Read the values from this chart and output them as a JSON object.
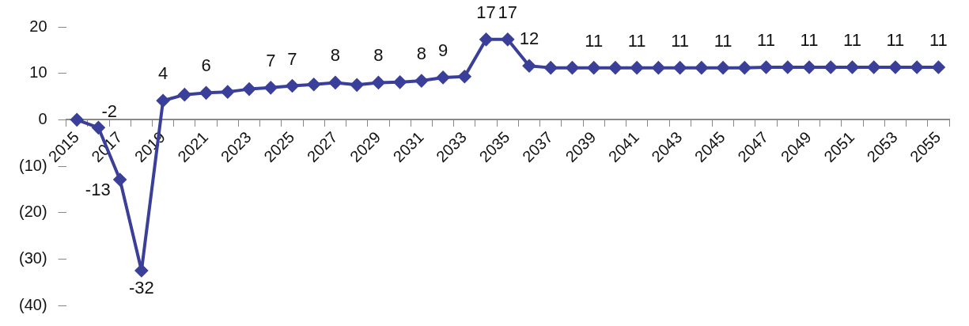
{
  "chart_data": {
    "type": "line",
    "categories": [
      "2015",
      null,
      "2017",
      null,
      "2019",
      null,
      "2021",
      null,
      "2023",
      null,
      "2025",
      null,
      "2027",
      null,
      "2029",
      null,
      "2031",
      null,
      "2033",
      null,
      "2035",
      null,
      "2037",
      null,
      "2039",
      null,
      "2041",
      null,
      "2043",
      null,
      "2045",
      null,
      "2047",
      null,
      "2049",
      null,
      "2051",
      null,
      "2053",
      null,
      "2055"
    ],
    "series": [
      {
        "color": "#3a3f9a",
        "values": [
          0,
          -1.7,
          -12.9,
          -32.5,
          4.1,
          5.4,
          5.8,
          6.0,
          6.6,
          6.9,
          7.3,
          7.6,
          8.0,
          7.5,
          8.0,
          8.1,
          8.4,
          9.1,
          9.3,
          17.3,
          17.3,
          11.6,
          11.2,
          11.2,
          11.2,
          11.2,
          11.2,
          11.2,
          11.2,
          11.2,
          11.2,
          11.2,
          11.3,
          11.3,
          11.3,
          11.3,
          11.3,
          11.3,
          11.3,
          11.3,
          11.3
        ],
        "value_labels": [
          null,
          "-2",
          "-13",
          "-32",
          "4",
          null,
          "6",
          null,
          null,
          "7",
          "7",
          null,
          "8",
          null,
          "8",
          null,
          "8",
          "9",
          null,
          "17",
          "17",
          "12",
          null,
          null,
          "11",
          null,
          "11",
          null,
          "11",
          null,
          "11",
          null,
          "11",
          null,
          "11",
          null,
          "11",
          null,
          "11",
          null,
          "11"
        ]
      }
    ],
    "ylim": [
      -40,
      20
    ],
    "yticks": [
      20,
      10,
      0,
      {
        "value": -10,
        "label": "(10)"
      },
      {
        "value": -20,
        "label": "(20)"
      },
      {
        "value": -30,
        "label": "(30)"
      },
      {
        "value": -40,
        "label": "(40)"
      }
    ],
    "grid": false,
    "legend": false,
    "marker": "diamond",
    "line_style": "solid"
  }
}
